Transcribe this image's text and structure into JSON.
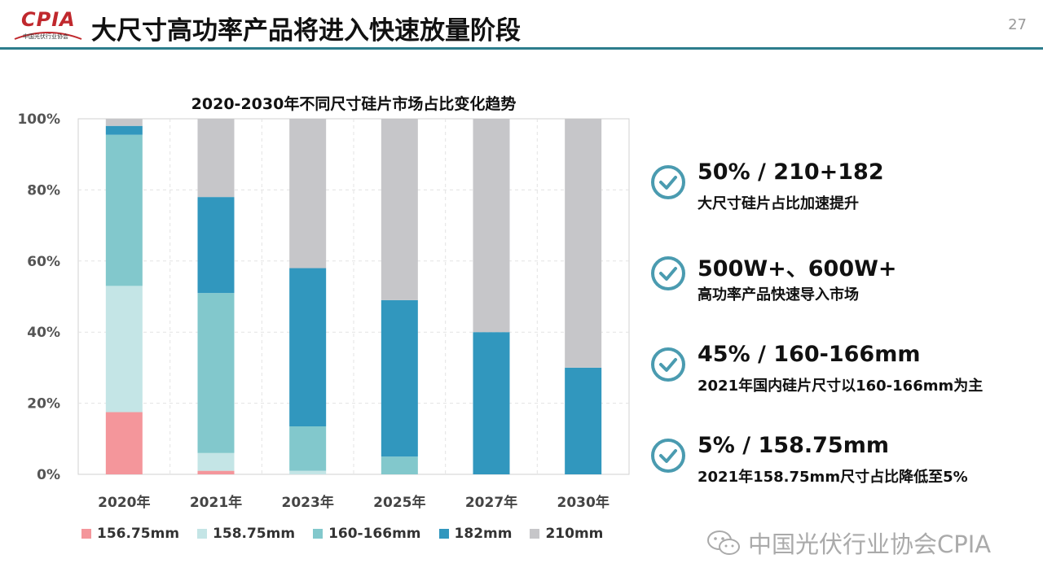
{
  "header": {
    "logo_text": "CPIA",
    "logo_sub": "中国光伏行业协会",
    "title": "大尺寸高功率产品将进入快速放量阶段",
    "page_number": "27"
  },
  "chart_data": {
    "type": "bar",
    "stacked": true,
    "title": "2020-2030年不同尺寸硅片市场占比变化趋势",
    "categories": [
      "2020年",
      "2021年",
      "2023年",
      "2025年",
      "2027年",
      "2030年"
    ],
    "y_ticks": [
      "0%",
      "20%",
      "40%",
      "60%",
      "80%",
      "100%"
    ],
    "ylim": [
      0,
      100
    ],
    "grid": true,
    "legend_position": "bottom",
    "series": [
      {
        "name": "156.75mm",
        "color": "#f4969b",
        "values": [
          17.5,
          1,
          0,
          0,
          0,
          0
        ]
      },
      {
        "name": "158.75mm",
        "color": "#c4e5e6",
        "values": [
          35.5,
          5,
          1,
          0,
          0,
          0
        ]
      },
      {
        "name": "160-166mm",
        "color": "#82c8cc",
        "values": [
          42.5,
          45,
          12.5,
          5,
          0,
          0
        ]
      },
      {
        "name": "182mm",
        "color": "#3197be",
        "values": [
          2.5,
          27,
          44.5,
          44,
          40,
          30
        ]
      },
      {
        "name": "210mm",
        "color": "#c6c6c9",
        "values": [
          2,
          22,
          42,
          51,
          60,
          70
        ]
      }
    ]
  },
  "points": [
    {
      "head": "50% / 210+182",
      "sub": "大尺寸硅片占比加速提升"
    },
    {
      "head": "500W+、600W+",
      "sub": "高功率产品快速导入市场"
    },
    {
      "head": "45% / 160-166mm",
      "sub": "2021年国内硅片尺寸以160-166mm为主"
    },
    {
      "head": "5% / 158.75mm",
      "sub": "2021年158.75mm尺寸占比降低至5%"
    }
  ],
  "watermark": "中国光伏行业协会CPIA",
  "colors": {
    "accent": "#2d7d8c",
    "check": "#4a9bb0"
  }
}
